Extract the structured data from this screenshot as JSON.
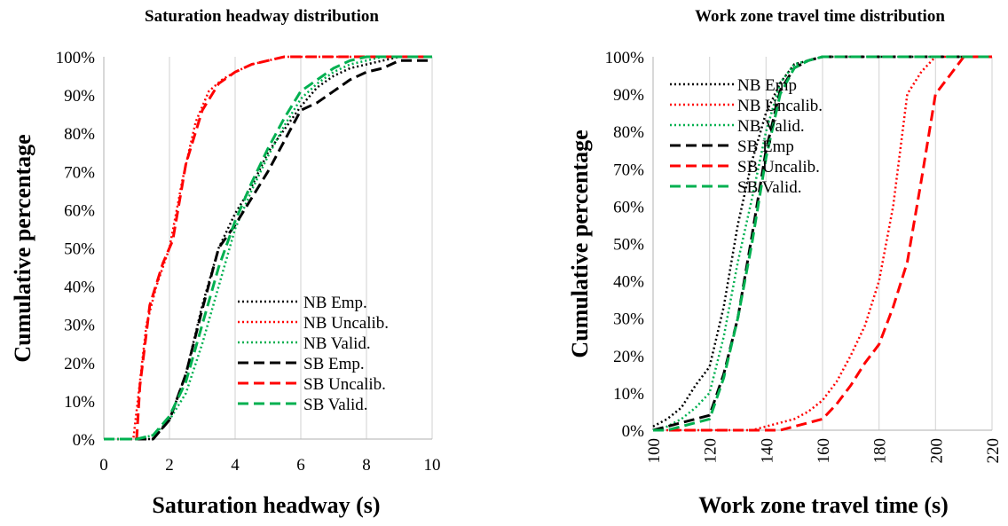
{
  "chart_data": [
    {
      "type": "line",
      "title": "Saturation headway distribution",
      "xlabel": "Saturation headway (s)",
      "ylabel": "Cumulative percentage",
      "xlim": [
        0,
        10
      ],
      "ylim": [
        0,
        100
      ],
      "x_ticks": [
        "0",
        "2",
        "4",
        "6",
        "8",
        "10"
      ],
      "y_ticks": [
        "0%",
        "10%",
        "20%",
        "30%",
        "40%",
        "50%",
        "60%",
        "70%",
        "80%",
        "90%",
        "100%"
      ],
      "grid": "vertical",
      "legend_position": "bottom-right",
      "series": [
        {
          "name": "NB Emp.",
          "color": "#000000",
          "dash": "dotted",
          "x": [
            0,
            1,
            1.5,
            2,
            2.5,
            3,
            3.5,
            4,
            4.5,
            5,
            5.5,
            6,
            6.5,
            7,
            7.5,
            8,
            8.5,
            9,
            10
          ],
          "y": [
            0,
            0,
            0,
            5,
            17,
            35,
            50,
            59,
            66,
            75,
            81,
            87,
            92,
            95,
            97,
            98,
            99,
            100,
            100
          ]
        },
        {
          "name": "NB Uncalib.",
          "color": "#ff0000",
          "dash": "dotted",
          "x": [
            0,
            0.9,
            1.1,
            1.3,
            1.6,
            2,
            2.4,
            2.8,
            3.2,
            3.6,
            4,
            4.5,
            5,
            5.5,
            6,
            10
          ],
          "y": [
            0,
            0,
            15,
            30,
            40,
            50,
            68,
            83,
            91,
            94,
            96,
            98,
            99,
            100,
            100,
            100
          ]
        },
        {
          "name": "NB Valid.",
          "color": "#00b050",
          "dash": "dotted",
          "x": [
            0,
            1,
            1.5,
            2,
            2.5,
            3,
            3.5,
            4,
            4.5,
            5,
            5.5,
            6,
            6.5,
            7,
            7.5,
            8,
            8.5,
            9,
            10
          ],
          "y": [
            0,
            0,
            1,
            5,
            12,
            25,
            40,
            55,
            65,
            74,
            82,
            89,
            93,
            96,
            98,
            99,
            100,
            100,
            100
          ]
        },
        {
          "name": "SB Emp.",
          "color": "#000000",
          "dash": "dashed",
          "x": [
            0,
            1,
            1.5,
            1.7,
            2,
            2.5,
            3,
            3.5,
            4,
            4.5,
            5,
            5.5,
            6,
            6.5,
            7,
            7.5,
            8,
            8.5,
            9,
            10
          ],
          "y": [
            0,
            0,
            0,
            2,
            5,
            17,
            34,
            50,
            56,
            63,
            70,
            78,
            86,
            88,
            91,
            94,
            96,
            97,
            99,
            99
          ]
        },
        {
          "name": "SB Uncalib.",
          "color": "#ff0000",
          "dash": "dashed",
          "x": [
            0,
            1,
            1.1,
            1.4,
            1.8,
            2.1,
            2.5,
            3,
            3.5,
            4,
            4.5,
            5,
            5.5,
            6,
            10
          ],
          "y": [
            0,
            0,
            14,
            35,
            46,
            52,
            72,
            86,
            93,
            96,
            98,
            99,
            100,
            100,
            100
          ]
        },
        {
          "name": "SB Valid.",
          "color": "#00b050",
          "dash": "dashed",
          "x": [
            0,
            1,
            1.5,
            2,
            2.5,
            3,
            3.5,
            4,
            4.5,
            5,
            5.5,
            6,
            6.5,
            7,
            7.5,
            8,
            8.5,
            9,
            10
          ],
          "y": [
            0,
            0,
            1,
            6,
            15,
            30,
            45,
            57,
            67,
            76,
            84,
            91,
            94,
            97,
            99,
            100,
            100,
            100,
            100
          ]
        }
      ]
    },
    {
      "type": "line",
      "title": "Work zone travel time distribution",
      "xlabel": "Work zone travel time (s)",
      "ylabel": "Cumulative percentage",
      "xlim": [
        100,
        220
      ],
      "ylim": [
        0,
        100
      ],
      "x_ticks": [
        "100",
        "120",
        "140",
        "160",
        "180",
        "200",
        "220"
      ],
      "y_ticks": [
        "0%",
        "10%",
        "20%",
        "30%",
        "40%",
        "50%",
        "60%",
        "70%",
        "80%",
        "90%",
        "100%"
      ],
      "grid": "vertical",
      "legend_position": "top-left",
      "series": [
        {
          "name": "NB Emp",
          "color": "#000000",
          "dash": "dotted",
          "x": [
            100,
            105,
            110,
            115,
            120,
            125,
            130,
            135,
            140,
            145,
            150,
            155,
            160,
            170,
            220
          ],
          "y": [
            1,
            3,
            6,
            12,
            17,
            33,
            55,
            72,
            85,
            93,
            98,
            99,
            100,
            100,
            100
          ]
        },
        {
          "name": "NB Uncalib.",
          "color": "#ff0000",
          "dash": "dotted",
          "x": [
            100,
            135,
            140,
            145,
            150,
            155,
            160,
            165,
            170,
            175,
            180,
            185,
            190,
            195,
            200,
            220
          ],
          "y": [
            0,
            0,
            1,
            2,
            3,
            5,
            8,
            13,
            20,
            28,
            40,
            60,
            90,
            96,
            100,
            100
          ]
        },
        {
          "name": "NB Valid.",
          "color": "#00b050",
          "dash": "dotted",
          "x": [
            100,
            105,
            110,
            115,
            120,
            125,
            130,
            135,
            140,
            145,
            150,
            155,
            160,
            170,
            220
          ],
          "y": [
            0,
            1,
            3,
            6,
            10,
            25,
            45,
            62,
            80,
            93,
            98,
            99,
            100,
            100,
            100
          ]
        },
        {
          "name": "SB Emp",
          "color": "#000000",
          "dash": "dashed",
          "x": [
            100,
            105,
            110,
            115,
            120,
            125,
            130,
            135,
            140,
            145,
            150,
            155,
            160,
            220
          ],
          "y": [
            0,
            1,
            2,
            3,
            4,
            15,
            30,
            52,
            75,
            91,
            97,
            99,
            100,
            100
          ]
        },
        {
          "name": "SB Uncalib.",
          "color": "#ff0000",
          "dash": "dashed",
          "x": [
            100,
            135,
            145,
            155,
            160,
            165,
            170,
            175,
            180,
            185,
            190,
            195,
            200,
            205,
            210,
            220
          ],
          "y": [
            0,
            0,
            0,
            2,
            3,
            7,
            12,
            18,
            23,
            33,
            45,
            67,
            90,
            95,
            100,
            100
          ]
        },
        {
          "name": "SB Valid.",
          "color": "#00b050",
          "dash": "dashed",
          "x": [
            100,
            105,
            110,
            115,
            120,
            125,
            130,
            135,
            140,
            145,
            150,
            155,
            160,
            220
          ],
          "y": [
            0,
            0,
            1,
            2,
            3,
            14,
            30,
            50,
            73,
            90,
            97,
            99,
            100,
            100
          ]
        }
      ]
    }
  ]
}
